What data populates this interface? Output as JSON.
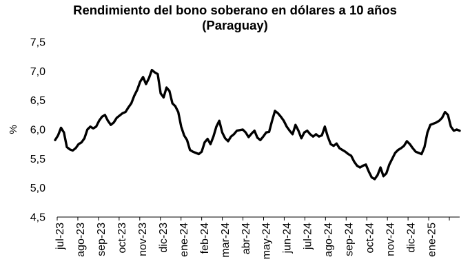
{
  "chart_data": {
    "type": "line",
    "title_line1": "Rendimiento del bono soberano en dólares a 10 años",
    "title_line2": "(Paraguay)",
    "ylabel": "%",
    "xlabel": "",
    "ylim": [
      4.5,
      7.5
    ],
    "yticks": [
      "4,5",
      "5,0",
      "5,5",
      "6,0",
      "6,5",
      "7,0",
      "7,5"
    ],
    "ytick_values": [
      4.5,
      5.0,
      5.5,
      6.0,
      6.5,
      7.0,
      7.5
    ],
    "xticks": [
      "jul-23",
      "ago-23",
      "sep-23",
      "oct-23",
      "nov-23",
      "dic-23",
      "ene-24",
      "feb-24",
      "mar-24",
      "abr-24",
      "may-24",
      "jun-24",
      "jul-24",
      "ago-24",
      "sep-24",
      "oct-24",
      "nov-24",
      "dic-24",
      "ene-25"
    ],
    "grid": false,
    "line_color": "#000000",
    "series": [
      {
        "values": [
          5.82,
          5.9,
          6.03,
          5.95,
          5.7,
          5.66,
          5.64,
          5.68,
          5.75,
          5.78,
          5.85,
          6.0,
          6.05,
          6.02,
          6.05,
          6.15,
          6.22,
          6.25,
          6.15,
          6.08,
          6.12,
          6.2,
          6.24,
          6.28,
          6.3,
          6.38,
          6.45,
          6.58,
          6.68,
          6.82,
          6.9,
          6.78,
          6.88,
          7.02,
          6.98,
          6.95,
          6.62,
          6.55,
          6.72,
          6.66,
          6.45,
          6.4,
          6.3,
          6.05,
          5.9,
          5.82,
          5.65,
          5.62,
          5.6,
          5.58,
          5.62,
          5.78,
          5.84,
          5.75,
          5.88,
          6.05,
          6.15,
          5.95,
          5.85,
          5.8,
          5.88,
          5.92,
          5.98,
          5.99,
          6.0,
          5.95,
          5.87,
          5.93,
          5.98,
          5.86,
          5.82,
          5.88,
          5.95,
          5.96,
          6.15,
          6.32,
          6.28,
          6.22,
          6.15,
          6.05,
          5.98,
          5.92,
          6.08,
          5.98,
          5.85,
          5.95,
          5.98,
          5.92,
          5.88,
          5.92,
          5.88,
          5.9,
          6.05,
          5.88,
          5.75,
          5.72,
          5.76,
          5.68,
          5.65,
          5.62,
          5.58,
          5.55,
          5.45,
          5.38,
          5.35,
          5.38,
          5.4,
          5.28,
          5.18,
          5.15,
          5.22,
          5.35,
          5.2,
          5.25,
          5.4,
          5.5,
          5.6,
          5.65,
          5.68,
          5.72,
          5.8,
          5.75,
          5.68,
          5.62,
          5.6,
          5.58,
          5.7,
          5.95,
          6.08,
          6.1,
          6.12,
          6.15,
          6.2,
          6.3,
          6.25,
          6.05,
          5.98,
          6.0,
          5.98
        ]
      }
    ]
  }
}
